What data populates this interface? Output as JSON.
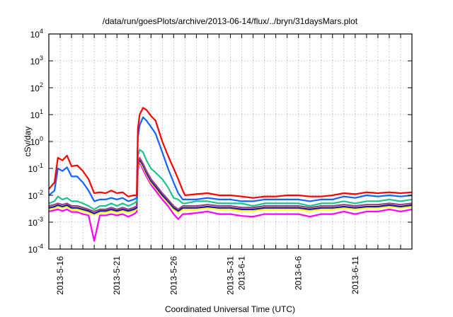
{
  "chart_data": {
    "type": "line",
    "title": "/data/run/goesPlots/archive/2013-06-14/flux/../bryn/31daysMars.plot",
    "xlabel": "Coordinated Universal Time (UTC)",
    "ylabel": "cSv/day",
    "x_units": "days since 2013-05-15 00:00 UTC",
    "xlim": [
      0,
      32
    ],
    "ylim": [
      0.0001,
      10000
    ],
    "yscale": "log",
    "grid": true,
    "legend": "none",
    "y_ticks": [
      {
        "value": 10000,
        "base": "10",
        "exp": "4"
      },
      {
        "value": 1000,
        "base": "10",
        "exp": "3"
      },
      {
        "value": 100,
        "base": "10",
        "exp": "2"
      },
      {
        "value": 10,
        "base": "10",
        "exp": "1"
      },
      {
        "value": 1,
        "base": "10",
        "exp": "0"
      },
      {
        "value": 0.1,
        "base": "10",
        "exp": "-1"
      },
      {
        "value": 0.01,
        "base": "10",
        "exp": "-2"
      },
      {
        "value": 0.001,
        "base": "10",
        "exp": "-3"
      },
      {
        "value": 0.0001,
        "base": "10",
        "exp": "-4"
      }
    ],
    "x_ticks": [
      {
        "value": 1,
        "label": "2013-5-16"
      },
      {
        "value": 6,
        "label": "2013-5-21"
      },
      {
        "value": 11,
        "label": "2013-5-26"
      },
      {
        "value": 16,
        "label": "2013-5-31"
      },
      {
        "value": 17,
        "label": "2013-6-1"
      },
      {
        "value": 22,
        "label": "2013-6-6"
      },
      {
        "value": 27,
        "label": "2013-6-11"
      }
    ],
    "x": [
      0,
      0.5,
      0.8,
      1.2,
      1.6,
      2,
      2.5,
      3,
      3.5,
      4,
      4.5,
      5,
      5.5,
      6,
      6.5,
      7,
      7.5,
      7.75,
      7.85,
      8,
      8.3,
      8.6,
      9,
      9.4,
      10,
      10.5,
      11,
      11.4,
      11.8,
      12,
      13,
      14,
      15,
      16,
      17,
      18,
      19,
      20,
      21,
      22,
      23,
      24,
      25,
      26,
      27,
      28,
      29,
      30,
      31,
      32
    ],
    "series": [
      {
        "name": "magenta",
        "color": "#ff00ff",
        "values": [
          0.0025,
          0.0028,
          0.003,
          0.0026,
          0.003,
          0.0024,
          0.0024,
          0.002,
          0.0018,
          0.0002,
          0.0018,
          0.0018,
          0.002,
          0.0018,
          0.002,
          0.0016,
          0.002,
          0.0024,
          0.09,
          0.17,
          0.09,
          0.05,
          0.025,
          0.015,
          0.007,
          0.004,
          0.002,
          0.0013,
          0.002,
          0.002,
          0.0022,
          0.0025,
          0.002,
          0.002,
          0.0017,
          0.0016,
          0.002,
          0.002,
          0.002,
          0.002,
          0.0016,
          0.002,
          0.002,
          0.0025,
          0.002,
          0.0025,
          0.0025,
          0.003,
          0.0025,
          0.003
        ]
      },
      {
        "name": "yellow",
        "color": "#ffff00",
        "values": [
          0.003,
          0.0034,
          0.0038,
          0.0034,
          0.0038,
          0.003,
          0.003,
          0.0026,
          0.0023,
          0.0019,
          0.0023,
          0.0023,
          0.0026,
          0.0023,
          0.0026,
          0.0023,
          0.0026,
          0.003,
          0.11,
          0.19,
          0.11,
          0.06,
          0.03,
          0.019,
          0.009,
          0.0053,
          0.003,
          0.0023,
          0.003,
          0.003,
          0.003,
          0.0034,
          0.003,
          0.003,
          0.0026,
          0.0026,
          0.003,
          0.003,
          0.003,
          0.003,
          0.0026,
          0.003,
          0.003,
          0.0034,
          0.003,
          0.0034,
          0.0034,
          0.0038,
          0.0034,
          0.0038
        ]
      },
      {
        "name": "navy",
        "color": "#1a1aa0",
        "values": [
          0.0034,
          0.0038,
          0.0043,
          0.0038,
          0.0043,
          0.0034,
          0.0034,
          0.003,
          0.0026,
          0.0021,
          0.0026,
          0.0026,
          0.003,
          0.0026,
          0.003,
          0.0026,
          0.003,
          0.0034,
          0.13,
          0.21,
          0.13,
          0.068,
          0.034,
          0.021,
          0.01,
          0.006,
          0.0034,
          0.0026,
          0.0034,
          0.0034,
          0.0034,
          0.0038,
          0.0034,
          0.0034,
          0.003,
          0.003,
          0.0034,
          0.0034,
          0.0034,
          0.0034,
          0.003,
          0.0034,
          0.0034,
          0.0038,
          0.0034,
          0.0038,
          0.0038,
          0.0043,
          0.0038,
          0.0043
        ]
      },
      {
        "name": "purple",
        "color": "#94467e",
        "values": [
          0.004,
          0.0045,
          0.005,
          0.0045,
          0.005,
          0.004,
          0.004,
          0.0035,
          0.003,
          0.0025,
          0.003,
          0.003,
          0.0035,
          0.003,
          0.0035,
          0.003,
          0.0035,
          0.004,
          0.15,
          0.25,
          0.15,
          0.08,
          0.04,
          0.025,
          0.012,
          0.007,
          0.004,
          0.003,
          0.004,
          0.004,
          0.004,
          0.0045,
          0.004,
          0.004,
          0.0035,
          0.0035,
          0.004,
          0.004,
          0.004,
          0.004,
          0.0035,
          0.004,
          0.004,
          0.0045,
          0.004,
          0.0045,
          0.0045,
          0.005,
          0.0045,
          0.005
        ]
      },
      {
        "name": "teal",
        "color": "#1cc391",
        "values": [
          0.005,
          0.006,
          0.009,
          0.007,
          0.008,
          0.006,
          0.006,
          0.005,
          0.004,
          0.003,
          0.004,
          0.004,
          0.005,
          0.004,
          0.005,
          0.004,
          0.005,
          0.006,
          0.3,
          0.5,
          0.4,
          0.2,
          0.1,
          0.07,
          0.04,
          0.02,
          0.008,
          0.007,
          0.005,
          0.005,
          0.006,
          0.006,
          0.005,
          0.005,
          0.005,
          0.004,
          0.005,
          0.005,
          0.005,
          0.005,
          0.004,
          0.005,
          0.005,
          0.006,
          0.005,
          0.006,
          0.006,
          0.007,
          0.006,
          0.007
        ]
      },
      {
        "name": "blue",
        "color": "#1464ff",
        "values": [
          0.01,
          0.015,
          0.1,
          0.08,
          0.11,
          0.05,
          0.05,
          0.03,
          0.015,
          0.006,
          0.007,
          0.007,
          0.008,
          0.007,
          0.008,
          0.006,
          0.007,
          0.008,
          1.5,
          4,
          8,
          6,
          3.5,
          2,
          0.4,
          0.1,
          0.03,
          0.012,
          0.007,
          0.007,
          0.007,
          0.008,
          0.007,
          0.007,
          0.006,
          0.006,
          0.007,
          0.007,
          0.007,
          0.007,
          0.006,
          0.007,
          0.007,
          0.009,
          0.008,
          0.01,
          0.009,
          0.01,
          0.009,
          0.01
        ]
      },
      {
        "name": "red",
        "color": "#ff0000",
        "values": [
          0.017,
          0.03,
          0.25,
          0.2,
          0.3,
          0.12,
          0.13,
          0.08,
          0.04,
          0.012,
          0.013,
          0.012,
          0.015,
          0.012,
          0.013,
          0.009,
          0.01,
          0.01,
          3,
          10,
          18,
          15,
          9,
          6,
          1,
          0.3,
          0.1,
          0.04,
          0.015,
          0.01,
          0.011,
          0.012,
          0.01,
          0.01,
          0.009,
          0.008,
          0.009,
          0.009,
          0.01,
          0.01,
          0.009,
          0.009,
          0.01,
          0.012,
          0.011,
          0.013,
          0.012,
          0.013,
          0.012,
          0.013
        ]
      }
    ]
  }
}
